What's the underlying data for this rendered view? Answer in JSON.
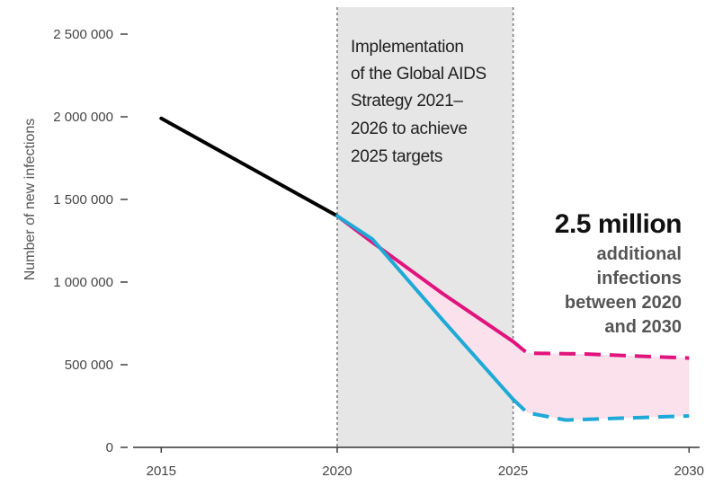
{
  "chart_data": {
    "type": "line",
    "ylabel": "Number of new infections",
    "xlabel": "",
    "title": "",
    "xlim": [
      2014.2,
      2030.3
    ],
    "ylim": [
      0,
      2500000
    ],
    "x_ticks": [
      2015,
      2020,
      2025,
      2030
    ],
    "x_tick_labels": [
      "2015",
      "2020",
      "2025",
      "2030"
    ],
    "y_ticks": [
      0,
      500000,
      1000000,
      1500000,
      2000000,
      2500000
    ],
    "y_tick_labels": [
      "0",
      "500 000",
      "1 000 000",
      "1 500 000",
      "2 000 000",
      "2 500 000"
    ],
    "grid": false,
    "series": [
      {
        "color": "#000000",
        "style": "solid",
        "x": [
          2015,
          2020
        ],
        "y": [
          1990000,
          1400000
        ]
      },
      {
        "color": "#e0147c",
        "style": "solid",
        "x": [
          2020,
          2021,
          2023,
          2025
        ],
        "y": [
          1400000,
          1240000,
          930000,
          640000
        ]
      },
      {
        "color": "#e0147c",
        "style": "dashed",
        "x": [
          2025,
          2025.4,
          2027,
          2030
        ],
        "y": [
          640000,
          570000,
          565000,
          540000
        ]
      },
      {
        "color": "#1ea9d6",
        "style": "solid",
        "x": [
          2020,
          2021,
          2023,
          2025
        ],
        "y": [
          1400000,
          1260000,
          770000,
          290000
        ]
      },
      {
        "color": "#1ea9d6",
        "style": "dashed",
        "x": [
          2025,
          2025.4,
          2026.5,
          2030
        ],
        "y": [
          290000,
          210000,
          165000,
          190000
        ]
      }
    ],
    "shaded_gap": {
      "color": "#fbe1ec"
    },
    "highlight_band": {
      "x_range": [
        2020,
        2025
      ],
      "color": "#e6e6e6",
      "lines": [
        "Implementation",
        "of the Global AIDS",
        "Strategy 2021–",
        "2026 to achieve",
        "2025 targets"
      ]
    },
    "annotation": {
      "headline": "2.5 million",
      "lines": [
        "additional",
        "infections",
        "between 2020",
        "and 2030"
      ]
    }
  }
}
